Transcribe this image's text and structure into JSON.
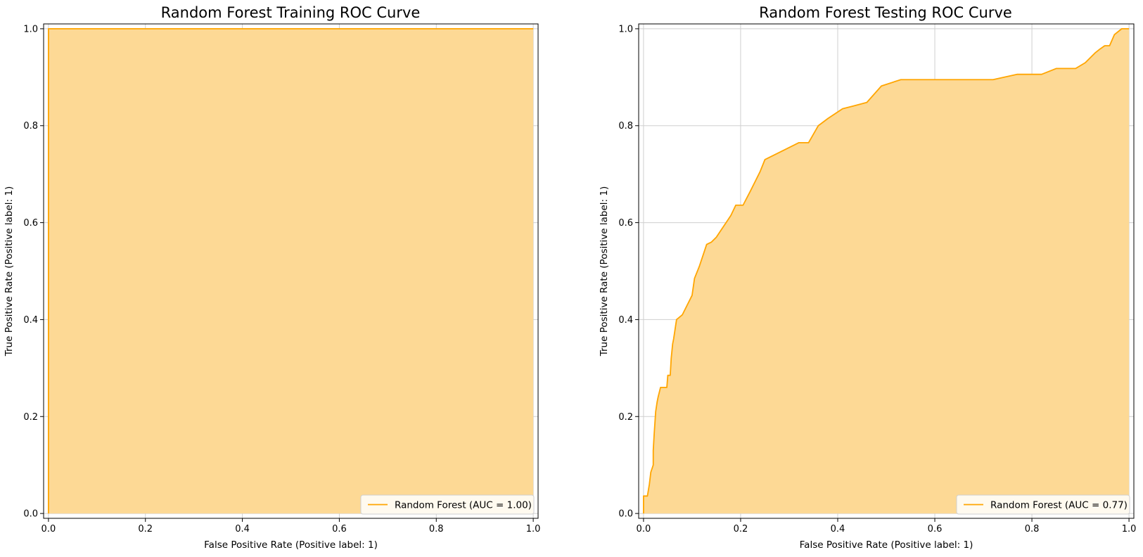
{
  "colors": {
    "curve": "#ffa500",
    "fill": "#fdd995",
    "grid": "#cfcfcf"
  },
  "chart_data": [
    {
      "type": "area",
      "title": "Random Forest Training ROC Curve",
      "xlabel": "False Positive Rate (Positive label: 1)",
      "ylabel": "True Positive Rate (Positive label: 1)",
      "xlim": [
        0,
        1
      ],
      "ylim": [
        0,
        1
      ],
      "grid": true,
      "legend_position": "lower-right",
      "xticks": [
        "0.0",
        "0.2",
        "0.4",
        "0.6",
        "0.8",
        "1.0"
      ],
      "yticks": [
        "0.0",
        "0.2",
        "0.4",
        "0.6",
        "0.8",
        "1.0"
      ],
      "series": [
        {
          "name": "Random Forest (AUC = 1.00)",
          "x": [
            0.0,
            0.0,
            1.0
          ],
          "y": [
            0.0,
            1.0,
            1.0
          ]
        }
      ]
    },
    {
      "type": "area",
      "title": "Random Forest Testing ROC Curve",
      "xlabel": "False Positive Rate (Positive label: 1)",
      "ylabel": "True Positive Rate (Positive label: 1)",
      "xlim": [
        0,
        1
      ],
      "ylim": [
        0,
        1
      ],
      "grid": true,
      "legend_position": "lower-right",
      "xticks": [
        "0.0",
        "0.2",
        "0.4",
        "0.6",
        "0.8",
        "1.0"
      ],
      "yticks": [
        "0.0",
        "0.2",
        "0.4",
        "0.6",
        "0.8",
        "1.0"
      ],
      "series": [
        {
          "name": "Random Forest (AUC = 0.77)",
          "x": [
            0.0,
            0.0,
            0.008,
            0.012,
            0.015,
            0.02,
            0.02,
            0.022,
            0.025,
            0.028,
            0.03,
            0.035,
            0.048,
            0.05,
            0.055,
            0.057,
            0.06,
            0.062,
            0.068,
            0.08,
            0.09,
            0.1,
            0.105,
            0.115,
            0.125,
            0.13,
            0.14,
            0.15,
            0.16,
            0.17,
            0.18,
            0.19,
            0.205,
            0.22,
            0.24,
            0.25,
            0.27,
            0.29,
            0.31,
            0.32,
            0.34,
            0.36,
            0.38,
            0.395,
            0.41,
            0.43,
            0.46,
            0.49,
            0.53,
            0.58,
            0.65,
            0.72,
            0.77,
            0.82,
            0.85,
            0.89,
            0.91,
            0.93,
            0.94,
            0.95,
            0.96,
            0.97,
            0.985,
            1.0
          ],
          "y": [
            0.0,
            0.036,
            0.036,
            0.06,
            0.085,
            0.1,
            0.13,
            0.165,
            0.21,
            0.23,
            0.24,
            0.26,
            0.26,
            0.285,
            0.285,
            0.32,
            0.35,
            0.36,
            0.4,
            0.41,
            0.43,
            0.45,
            0.485,
            0.51,
            0.54,
            0.555,
            0.56,
            0.57,
            0.585,
            0.6,
            0.615,
            0.636,
            0.636,
            0.665,
            0.705,
            0.73,
            0.74,
            0.75,
            0.76,
            0.765,
            0.765,
            0.8,
            0.815,
            0.825,
            0.835,
            0.84,
            0.848,
            0.882,
            0.895,
            0.895,
            0.895,
            0.895,
            0.906,
            0.906,
            0.918,
            0.918,
            0.93,
            0.95,
            0.958,
            0.965,
            0.965,
            0.988,
            1.0,
            1.0
          ]
        }
      ]
    }
  ]
}
